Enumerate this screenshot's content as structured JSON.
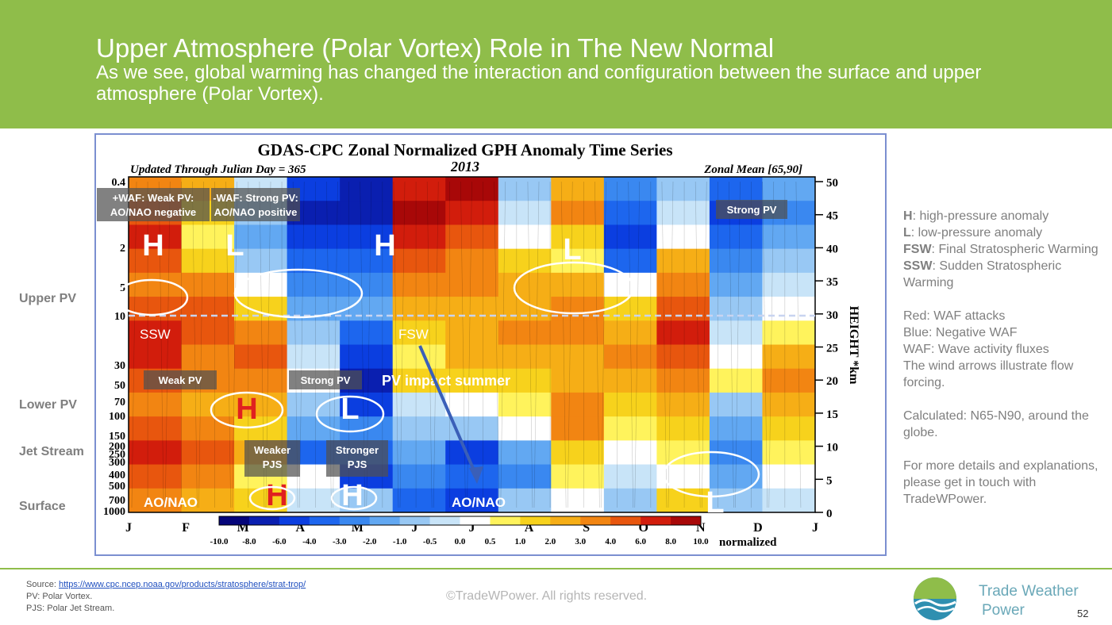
{
  "slide": {
    "title": "Upper Atmosphere (Polar Vortex) Role in The New Normal",
    "subtitle": "As we see, global warming has changed the interaction and configuration between the surface and upper atmosphere (Polar Vortex).",
    "page_number": "52"
  },
  "colors": {
    "header_green": "#8fbd4a",
    "brand_teal": "#6aa8b8"
  },
  "side_labels": [
    "Upper PV",
    "Lower PV",
    "Jet Stream",
    "Surface"
  ],
  "legend_panel": {
    "lines": [
      {
        "key": "H",
        "text": ": high-pressure anomaly"
      },
      {
        "key": "L",
        "text": ": low-pressure anomaly"
      },
      {
        "key": "FSW",
        "text": ": Final Stratospheric Warming"
      },
      {
        "key": "SSW",
        "text": ": Sudden Stratospheric Warming"
      },
      {
        "key": "",
        "text": ""
      },
      {
        "key": "",
        "text": "Red: WAF attacks"
      },
      {
        "key": "",
        "text": "Blue: Negative WAF"
      },
      {
        "key": "",
        "text": "WAF: Wave activity fluxes"
      },
      {
        "key": "",
        "text": "The wind arrows illustrate flow forcing."
      },
      {
        "key": "",
        "text": ""
      },
      {
        "key": "",
        "text": "Calculated: N65-N90, around the globe."
      },
      {
        "key": "",
        "text": ""
      },
      {
        "key": "",
        "text": "For more details and explanations, please get in touch with TradeWPower."
      }
    ]
  },
  "footer": {
    "source_label": "Source: ",
    "source_url": "https://www.cpc.ncep.noaa.gov/products/stratosphere/strat-trop/",
    "note1": "PV: Polar Vortex.",
    "note2": "PJS: Polar Jet Stream.",
    "copyright": "©TradeWPower. All rights reserved.",
    "brand_line1": "Trade Weather",
    "brand_line2": "Power"
  },
  "chart_data": {
    "type": "heatmap",
    "title": "GDAS-CPC Zonal Normalized GPH Anomaly Time Series",
    "subtitle_left": "Updated Through Julian Day = 365",
    "year": "2013",
    "subtitle_right": "Zonal Mean [65,90]",
    "x_tick_labels": [
      "J",
      "F",
      "M",
      "A",
      "M",
      "J",
      "J",
      "A",
      "S",
      "O",
      "N",
      "D",
      "J"
    ],
    "y_left_tick_labels": [
      "0.4",
      "2",
      "5",
      "10",
      "30",
      "50",
      "70",
      "100",
      "150",
      "200",
      "250",
      "300",
      "400",
      "500",
      "700",
      "1000"
    ],
    "y_right_label": "HEIGHT *km",
    "y_right_ticks": [
      50,
      45,
      40,
      35,
      30,
      25,
      20,
      15,
      10,
      5,
      0
    ],
    "colorbar": {
      "labels": [
        "-10.0",
        "-8.0",
        "-6.0",
        "-4.0",
        "-3.0",
        "-2.0",
        "-1.0",
        "-0.5",
        "0.0",
        "0.5",
        "1.0",
        "2.0",
        "3.0",
        "4.0",
        "6.0",
        "8.0",
        "10.0"
      ],
      "unit_label": "normalized",
      "colors": [
        "#05057a",
        "#0a1fb0",
        "#0b3ee0",
        "#1d66ee",
        "#3a88f0",
        "#62a8f2",
        "#98c8f4",
        "#c8e4f8",
        "#ffffff",
        "#fff35c",
        "#f7d21c",
        "#f6ae16",
        "#f28512",
        "#e8560e",
        "#d21d0c",
        "#a80808"
      ]
    },
    "annotations": {
      "boxes": [
        "+WAF: Weak PV:\nAO/NAO negative",
        "-WAF: Strong PV:\nAO/NAO positive",
        "Strong PV",
        "Weak PV",
        "Strong PV",
        "Weaker\nPJS",
        "Stronger\nPJS"
      ],
      "letters": [
        "H",
        "L",
        "H",
        "L",
        "H",
        "L",
        "H",
        "H",
        "L"
      ],
      "labels": [
        "SSW",
        "FSW",
        "PV impact summer",
        "AO/NAO",
        "AO/NAO"
      ]
    }
  }
}
